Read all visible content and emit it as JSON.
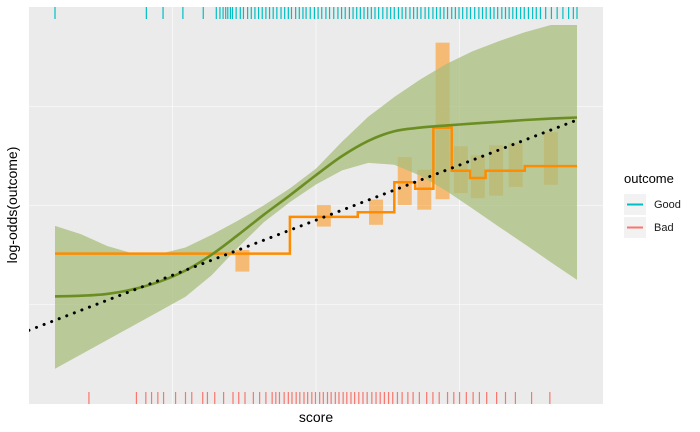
{
  "chart_data": {
    "type": "line",
    "xlabel": "score",
    "ylabel": "log-odds(outcome)",
    "xlim": [
      0,
      100
    ],
    "ylim": [
      0,
      100
    ],
    "grid": true,
    "legend": {
      "title": "outcome",
      "placement": "right",
      "entries": [
        {
          "label": "Good",
          "color": "#00BFC4"
        },
        {
          "label": "Bad",
          "color": "#F8766D"
        }
      ]
    },
    "colors": {
      "panel": "#EBEBEB",
      "gridline": "#FFFFFF",
      "smooth_line": "#6B8E23",
      "smooth_band": "#A8BE7C",
      "binned": "#FF8C00",
      "linear_fit": "#000000"
    },
    "series": [
      {
        "kind": "smooth",
        "x": [
          0,
          5,
          10,
          15,
          20,
          25,
          30,
          35,
          40,
          45,
          50,
          55,
          60,
          65,
          70,
          75,
          80,
          85,
          90,
          95,
          100
        ],
        "y": [
          24.6,
          24.8,
          25.3,
          26.6,
          28.7,
          31.8,
          36.2,
          41.6,
          47.3,
          52.7,
          58.3,
          63.6,
          67.8,
          70.5,
          71.5,
          72.1,
          72.6,
          73.1,
          73.6,
          74.0,
          74.3
        ],
        "lower": [
          4.5,
          8.5,
          12.5,
          16.5,
          20.5,
          24.5,
          30.5,
          38.1,
          45.2,
          50.8,
          55.7,
          59.6,
          61.7,
          61.2,
          58.1,
          53.9,
          49.0,
          44.0,
          39.1,
          34.1,
          29.2
        ],
        "upper": [
          44.2,
          41.9,
          38.6,
          36.5,
          36.4,
          38.2,
          41.7,
          45.6,
          49.9,
          54.6,
          60.1,
          67.6,
          74.5,
          80.0,
          84.9,
          89.2,
          92.7,
          95.5,
          98.0,
          100.0,
          100.0
        ]
      },
      {
        "kind": "linear-fit",
        "x": [
          -5,
          100
        ],
        "y": [
          15.2,
          73.6
        ]
      },
      {
        "kind": "binned-step",
        "bins": [
          {
            "x0": 0,
            "x1": 45,
            "y": 36.5,
            "lo": 34,
            "hi": 39
          },
          {
            "x0": 45,
            "x1": 58,
            "y": 46.7,
            "lo": 44,
            "hi": 50
          },
          {
            "x0": 58,
            "x1": 65,
            "y": 48.0,
            "lo": 44.5,
            "hi": 51.5
          },
          {
            "x0": 65,
            "x1": 69,
            "y": 56.3,
            "lo": 50,
            "hi": 63.3
          },
          {
            "x0": 69,
            "x1": 72.5,
            "y": 54.5,
            "lo": 48.7,
            "hi": 59.8
          },
          {
            "x0": 72.5,
            "x1": 76,
            "y": 71.5,
            "lo": 51.6,
            "hi": 95.1
          },
          {
            "x0": 76,
            "x1": 79.5,
            "y": 59.5,
            "lo": 53.3,
            "hi": 66.3
          },
          {
            "x0": 79.5,
            "x1": 82.5,
            "y": 57.5,
            "lo": 51.9,
            "hi": 63.8
          },
          {
            "x0": 82.5,
            "x1": 86.5,
            "y": 59.5,
            "lo": 52.6,
            "hi": 66.6
          },
          {
            "x0": 86.5,
            "x1": 90,
            "y": 59.5,
            "lo": 55,
            "hi": 67.3
          },
          {
            "x0": 90,
            "x1": 100,
            "y": 60.8,
            "lo": 55.6,
            "hi": 70.2
          }
        ]
      }
    ],
    "rugs": {
      "good": [
        0,
        17.5,
        20.7,
        24.5,
        28.4,
        30.9,
        31.6,
        32.2,
        32.7,
        33.1,
        33.6,
        34.0,
        34.7,
        35.5,
        36.1,
        36.9,
        37.6,
        38.3,
        39.0,
        39.7,
        40.4,
        41.1,
        41.8,
        42.5,
        43.3,
        44.0,
        44.7,
        45.3,
        46.1,
        46.8,
        47.5,
        48.1,
        48.9,
        49.7,
        50.4,
        51.1,
        51.9,
        52.6,
        53.4,
        54.2,
        54.9,
        55.6,
        56.4,
        57.1,
        57.8,
        58.5,
        59.2,
        59.9,
        60.6,
        61.3,
        62.0,
        62.8,
        63.6,
        64.3,
        65.0,
        65.8,
        66.5,
        67.2,
        68.0,
        68.7,
        69.4,
        70.1,
        70.9,
        71.6,
        72.4,
        73.1,
        73.8,
        74.5,
        75.2,
        76.0,
        76.7,
        77.4,
        78.1,
        78.9,
        79.6,
        80.4,
        81.2,
        81.9,
        82.6,
        83.4,
        84.1,
        84.8,
        85.6,
        86.3,
        87.0,
        87.7,
        88.4,
        89.2,
        89.9,
        90.7,
        91.5,
        92.2,
        93.0,
        94.0,
        95.1,
        96.2,
        97.3,
        98.4,
        99.3,
        100
      ],
      "bad": [
        6.5,
        15.6,
        17.4,
        18.5,
        19.7,
        20.8,
        23.1,
        25.0,
        26.2,
        28.3,
        29.2,
        30.6,
        32.3,
        34.1,
        35.2,
        36.4,
        38.0,
        39.2,
        40.4,
        41.6,
        42.3,
        43.0,
        43.9,
        44.7,
        45.4,
        46.2,
        46.9,
        47.7,
        48.4,
        49.2,
        49.9,
        50.7,
        51.4,
        52.2,
        52.9,
        53.7,
        54.4,
        55.2,
        55.9,
        56.7,
        57.4,
        58.2,
        59.0,
        59.8,
        60.7,
        61.5,
        62.3,
        63.1,
        63.9,
        64.7,
        65.6,
        66.5,
        67.6,
        68.6,
        69.8,
        71.2,
        72.4,
        73.6,
        75.2,
        76.4,
        77.5,
        78.8,
        80.1,
        81.3,
        82.7,
        84.6,
        86.3,
        88.2,
        91.3,
        94.8
      ]
    }
  }
}
